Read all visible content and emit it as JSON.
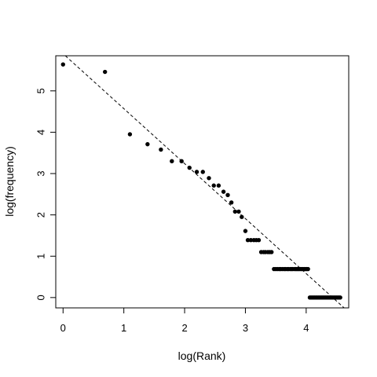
{
  "chart_data": {
    "type": "scatter",
    "title": "",
    "xlabel": "log(Rank)",
    "ylabel": "log(frequency)",
    "xlim": [
      -0.12,
      4.7
    ],
    "ylim": [
      -0.25,
      5.85
    ],
    "x_ticks": [
      {
        "value": 0,
        "label": "0"
      },
      {
        "value": 1,
        "label": "1"
      },
      {
        "value": 2,
        "label": "2"
      },
      {
        "value": 3,
        "label": "3"
      },
      {
        "value": 4,
        "label": "4"
      }
    ],
    "y_ticks": [
      {
        "value": 0,
        "label": "0"
      },
      {
        "value": 1,
        "label": "1"
      },
      {
        "value": 2,
        "label": "2"
      },
      {
        "value": 3,
        "label": "3"
      },
      {
        "value": 4,
        "label": "4"
      },
      {
        "value": 5,
        "label": "5"
      }
    ],
    "grid": false,
    "legend": "none",
    "point_color": "#000000",
    "fit_line": {
      "style": "dashed",
      "color": "#000000",
      "intercept": 5.9,
      "slope": -1.33
    },
    "points": [
      [
        0.0,
        5.64
      ],
      [
        0.69,
        5.46
      ],
      [
        1.1,
        3.95
      ],
      [
        1.39,
        3.71
      ],
      [
        1.61,
        3.58
      ],
      [
        1.79,
        3.3
      ],
      [
        1.95,
        3.3
      ],
      [
        2.08,
        3.14
      ],
      [
        2.2,
        3.04
      ],
      [
        2.3,
        3.04
      ],
      [
        2.4,
        2.89
      ],
      [
        2.48,
        2.71
      ],
      [
        2.56,
        2.71
      ],
      [
        2.64,
        2.56
      ],
      [
        2.71,
        2.48
      ],
      [
        2.77,
        2.3
      ],
      [
        2.83,
        2.08
      ],
      [
        2.89,
        2.08
      ],
      [
        2.94,
        1.95
      ],
      [
        3.0,
        1.61
      ],
      [
        3.04,
        1.39
      ],
      [
        3.09,
        1.39
      ],
      [
        3.14,
        1.39
      ],
      [
        3.18,
        1.39
      ],
      [
        3.22,
        1.39
      ],
      [
        3.26,
        1.1
      ],
      [
        3.3,
        1.1
      ],
      [
        3.33,
        1.1
      ],
      [
        3.37,
        1.1
      ],
      [
        3.4,
        1.1
      ],
      [
        3.43,
        1.1
      ],
      [
        3.47,
        0.69
      ],
      [
        3.5,
        0.69
      ],
      [
        3.53,
        0.69
      ],
      [
        3.56,
        0.69
      ],
      [
        3.58,
        0.69
      ],
      [
        3.61,
        0.69
      ],
      [
        3.64,
        0.69
      ],
      [
        3.66,
        0.69
      ],
      [
        3.69,
        0.69
      ],
      [
        3.71,
        0.69
      ],
      [
        3.74,
        0.69
      ],
      [
        3.76,
        0.69
      ],
      [
        3.78,
        0.69
      ],
      [
        3.81,
        0.69
      ],
      [
        3.83,
        0.69
      ],
      [
        3.85,
        0.69
      ],
      [
        3.87,
        0.69
      ],
      [
        3.89,
        0.69
      ],
      [
        3.91,
        0.69
      ],
      [
        3.93,
        0.69
      ],
      [
        3.95,
        0.69
      ],
      [
        3.97,
        0.69
      ],
      [
        3.99,
        0.69
      ],
      [
        4.01,
        0.69
      ],
      [
        4.03,
        0.69
      ],
      [
        4.06,
        0.0
      ],
      [
        4.08,
        0.0
      ],
      [
        4.1,
        0.0
      ],
      [
        4.12,
        0.0
      ],
      [
        4.14,
        0.0
      ],
      [
        4.16,
        0.0
      ],
      [
        4.18,
        0.0
      ],
      [
        4.2,
        0.0
      ],
      [
        4.22,
        0.0
      ],
      [
        4.24,
        0.0
      ],
      [
        4.26,
        0.0
      ],
      [
        4.28,
        0.0
      ],
      [
        4.3,
        0.0
      ],
      [
        4.32,
        0.0
      ],
      [
        4.34,
        0.0
      ],
      [
        4.36,
        0.0
      ],
      [
        4.38,
        0.0
      ],
      [
        4.4,
        0.0
      ],
      [
        4.42,
        0.0
      ],
      [
        4.44,
        0.0
      ],
      [
        4.46,
        0.0
      ],
      [
        4.48,
        0.0
      ],
      [
        4.5,
        0.0
      ],
      [
        4.52,
        0.0
      ],
      [
        4.54,
        0.0
      ],
      [
        4.56,
        0.0
      ]
    ]
  }
}
